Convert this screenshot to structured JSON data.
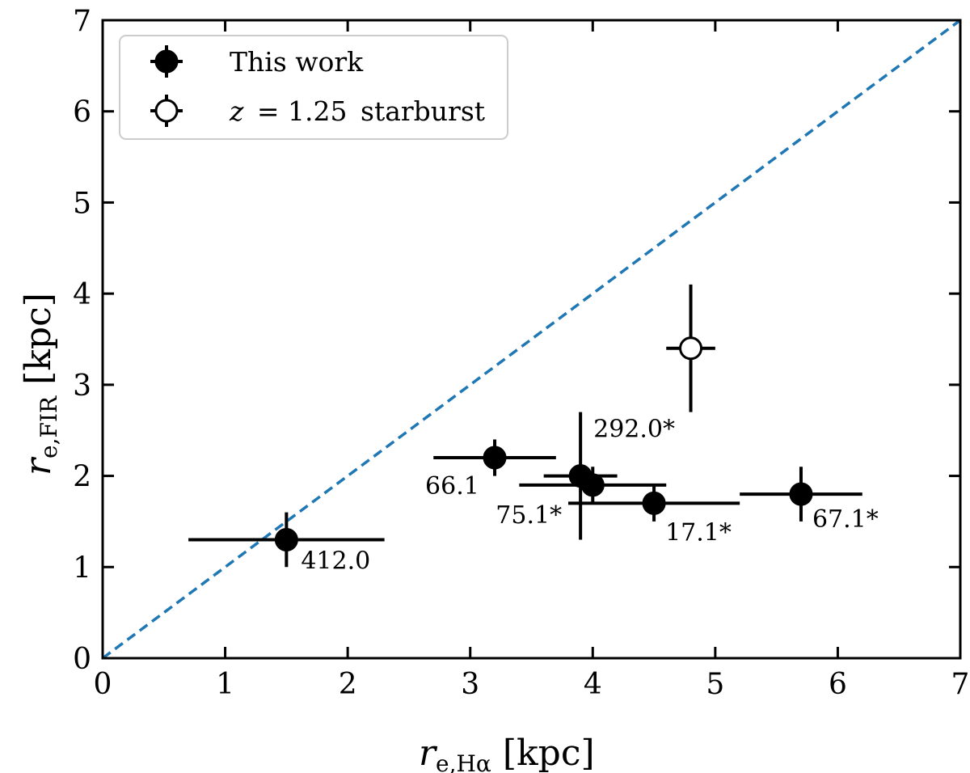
{
  "chart_data": {
    "type": "scatter",
    "title": "",
    "xlabel_main": "r",
    "xlabel_sub": "e,Hα",
    "xlabel_unit": "[kpc]",
    "ylabel_main": "r",
    "ylabel_sub": "e,FIR",
    "ylabel_unit": "[kpc]",
    "xlim": [
      0,
      7
    ],
    "ylim": [
      0,
      7
    ],
    "xticks": [
      "0",
      "1",
      "2",
      "3",
      "4",
      "5",
      "6",
      "7"
    ],
    "yticks": [
      "0",
      "1",
      "2",
      "3",
      "4",
      "5",
      "6",
      "7"
    ],
    "legend_position": "top-left",
    "reference_line": {
      "name": "one-to-one",
      "x": [
        0,
        7
      ],
      "y": [
        0,
        7
      ],
      "color": "#1f77b4",
      "style": "dashed"
    },
    "series": [
      {
        "name": "This work",
        "marker": "filled-circle",
        "color": "#000000",
        "points": [
          {
            "label": "412.0",
            "x": 1.5,
            "xerr": 0.8,
            "y": 1.3,
            "yerr": 0.3
          },
          {
            "label": "66.1",
            "x": 3.2,
            "xerr": 0.5,
            "y": 2.2,
            "yerr": 0.2
          },
          {
            "label": "292.0*",
            "x": 3.9,
            "xerr": 0.3,
            "y": 2.0,
            "yerr": 0.7
          },
          {
            "label": "75.1*",
            "x": 4.0,
            "xerr": 0.6,
            "y": 1.9,
            "yerr": 0.2
          },
          {
            "label": "17.1*",
            "x": 4.5,
            "xerr": 0.7,
            "y": 1.7,
            "yerr": 0.2
          },
          {
            "label": "67.1*",
            "x": 5.7,
            "xerr": 0.5,
            "y": 1.8,
            "yerr": 0.3
          }
        ]
      },
      {
        "name": "starburst",
        "legend_prefix": "z",
        "legend_mid": "= 1.25",
        "marker": "open-circle",
        "color": "#000000",
        "points": [
          {
            "label": "",
            "x": 4.8,
            "xerr": 0.2,
            "y": 3.4,
            "yerr": 0.7
          }
        ]
      }
    ]
  }
}
